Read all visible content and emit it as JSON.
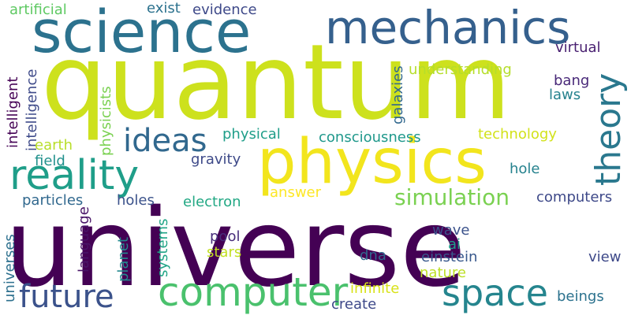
{
  "words": [
    {
      "text": "quantum",
      "color": "#cde11d"
    },
    {
      "text": "universe",
      "color": "#440154"
    },
    {
      "text": "physics",
      "color": "#f2e51d"
    },
    {
      "text": "science",
      "color": "#2c728e"
    },
    {
      "text": "mechanics",
      "color": "#35608d"
    },
    {
      "text": "reality",
      "color": "#1f9e89"
    },
    {
      "text": "computer",
      "color": "#4ac16d"
    },
    {
      "text": "space",
      "color": "#25858e"
    },
    {
      "text": "theory",
      "color": "#2a788e"
    },
    {
      "text": "future",
      "color": "#3b528b"
    },
    {
      "text": "ideas",
      "color": "#31688e"
    },
    {
      "text": "simulation",
      "color": "#7ad151"
    },
    {
      "text": "artificial",
      "color": "#5ec962"
    },
    {
      "text": "evidence",
      "color": "#3e4989"
    },
    {
      "text": "exist",
      "color": "#2c728e"
    },
    {
      "text": "understanding",
      "color": "#b5de2b"
    },
    {
      "text": "virtual",
      "color": "#481f70"
    },
    {
      "text": "bang",
      "color": "#482878"
    },
    {
      "text": "intelligent",
      "color": "#440154"
    },
    {
      "text": "intelligence",
      "color": "#3e4a89"
    },
    {
      "text": "physicists",
      "color": "#7ad151"
    },
    {
      "text": "galaxies",
      "color": "#31688e"
    },
    {
      "text": "laws",
      "color": "#26828e"
    },
    {
      "text": "physical",
      "color": "#1f9e89"
    },
    {
      "text": "consciousness",
      "color": "#1f988b"
    },
    {
      "text": "technology",
      "color": "#d2e21b"
    },
    {
      "text": "earth",
      "color": "#b8de29"
    },
    {
      "text": "field",
      "color": "#21918c"
    },
    {
      "text": "gravity",
      "color": "#3e4a89"
    },
    {
      "text": "hole",
      "color": "#26828e"
    },
    {
      "text": "particles",
      "color": "#31688e"
    },
    {
      "text": "holes",
      "color": "#3b528b"
    },
    {
      "text": "electron",
      "color": "#22a884"
    },
    {
      "text": "answer",
      "color": "#fde725"
    },
    {
      "text": "computers",
      "color": "#3e4989"
    },
    {
      "text": "language",
      "color": "#481467"
    },
    {
      "text": "systems",
      "color": "#20a486"
    },
    {
      "text": "planet",
      "color": "#23898e"
    },
    {
      "text": "universes",
      "color": "#2d708e"
    },
    {
      "text": "pool",
      "color": "#472d7b"
    },
    {
      "text": "stars",
      "color": "#c2df23"
    },
    {
      "text": "wave",
      "color": "#3b528b"
    },
    {
      "text": "ai",
      "color": "#1f9e89"
    },
    {
      "text": "dna",
      "color": "#31688e"
    },
    {
      "text": "einstein",
      "color": "#38588c"
    },
    {
      "text": "view",
      "color": "#3e4989"
    },
    {
      "text": "nature",
      "color": "#bddf26"
    },
    {
      "text": "infinite",
      "color": "#d8e219"
    },
    {
      "text": "create",
      "color": "#3e4989"
    },
    {
      "text": "beings",
      "color": "#2c728e"
    }
  ]
}
